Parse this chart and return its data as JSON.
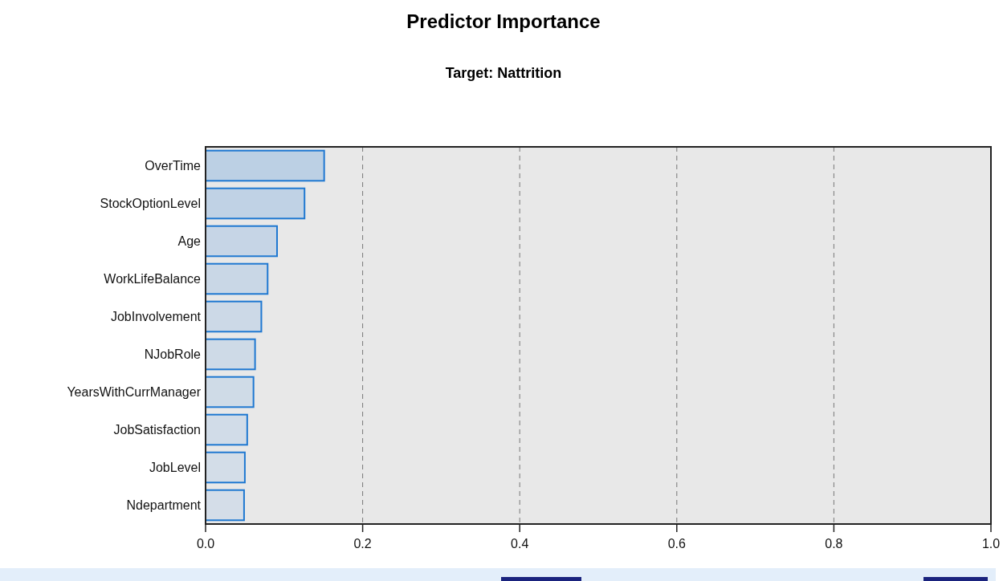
{
  "chart_data": {
    "type": "bar",
    "title": "Predictor Importance",
    "subtitle": "Target: Nattrition",
    "orientation": "horizontal",
    "categories": [
      "OverTime",
      "StockOptionLevel",
      "Age",
      "WorkLifeBalance",
      "JobInvolvement",
      "NJobRole",
      "YearsWithCurrManager",
      "JobSatisfaction",
      "JobLevel",
      "Ndepartment"
    ],
    "values": [
      0.151,
      0.126,
      0.091,
      0.079,
      0.071,
      0.063,
      0.061,
      0.053,
      0.05,
      0.049
    ],
    "colors": [
      "#bcd0e4",
      "#c0d2e5",
      "#c6d5e6",
      "#c9d7e6",
      "#ccd9e7",
      "#cedae7",
      "#cfdbe7",
      "#d1dce8",
      "#d3dde8",
      "#d4dde8"
    ],
    "xlim": [
      0,
      1
    ],
    "xticks": [
      {
        "value": 0,
        "label": "0.0"
      },
      0.2,
      0.4,
      0.6,
      0.8,
      {
        "value": 1,
        "label": "1.0"
      }
    ],
    "grid": "x"
  }
}
